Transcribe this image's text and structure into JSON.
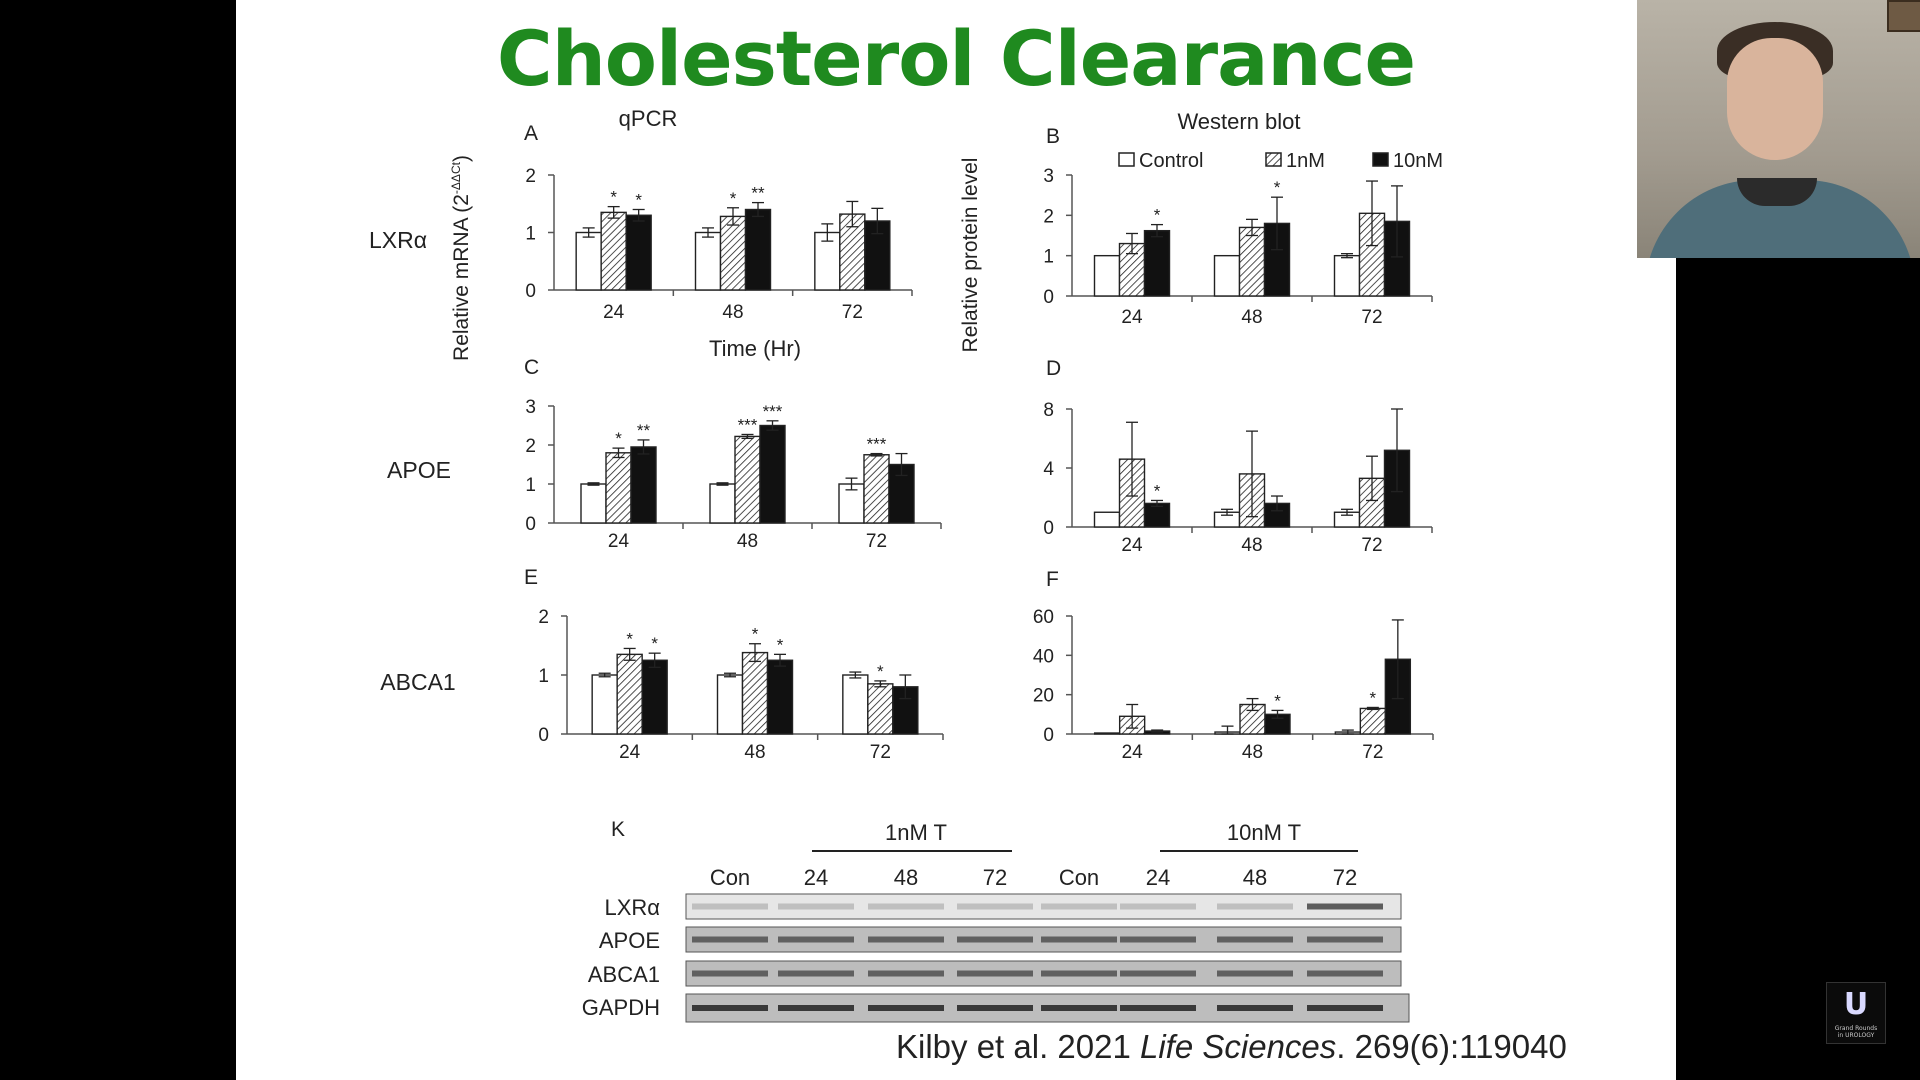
{
  "slide": {
    "title": "Cholesterol Clearance",
    "citation_authors": "Kilby et al. 2021 ",
    "citation_journal": "Life Sciences",
    "citation_ref": ". 269(6):119040"
  },
  "figure_labels": {
    "qpcr_header": "qPCR",
    "western_header": "Western blot",
    "rna_ylabel": "Relative mRNA (2",
    "rna_ylabel_sup": "-ΔΔCt",
    "rna_ylabel_end": ")",
    "protein_ylabel": "Relative protein level",
    "time_label": "Time (Hr)",
    "row_labels": [
      "LXRα",
      "APOE",
      "ABCA1"
    ],
    "legend": [
      {
        "label": "Control",
        "fill": "white"
      },
      {
        "label": "1nM",
        "fill": "hatch"
      },
      {
        "label": "10nM",
        "fill": "black"
      }
    ]
  },
  "chart_data": [
    {
      "panel": "A",
      "type": "bar",
      "categories": [
        "24",
        "48",
        "72"
      ],
      "yticks": [
        0,
        1,
        2
      ],
      "ylim": [
        0,
        2
      ],
      "series": [
        {
          "name": "Control",
          "values": [
            1.0,
            1.0,
            1.0
          ],
          "err": [
            0.08,
            0.08,
            0.15
          ],
          "stars": [
            "",
            "",
            ""
          ]
        },
        {
          "name": "1nM",
          "values": [
            1.35,
            1.28,
            1.32
          ],
          "err": [
            0.1,
            0.15,
            0.22
          ],
          "stars": [
            "*",
            "*",
            ""
          ]
        },
        {
          "name": "10nM",
          "values": [
            1.3,
            1.4,
            1.2
          ],
          "err": [
            0.1,
            0.12,
            0.22
          ],
          "stars": [
            "*",
            "**",
            ""
          ]
        }
      ]
    },
    {
      "panel": "B",
      "type": "bar",
      "categories": [
        "24",
        "48",
        "72"
      ],
      "yticks": [
        0,
        1,
        2,
        3
      ],
      "ylim": [
        0,
        3
      ],
      "series": [
        {
          "name": "Control",
          "values": [
            1.0,
            1.0,
            1.0
          ],
          "err": [
            0,
            0,
            0.05
          ],
          "stars": [
            "",
            "",
            ""
          ]
        },
        {
          "name": "1nM",
          "values": [
            1.3,
            1.7,
            2.05
          ],
          "err": [
            0.25,
            0.2,
            0.8
          ],
          "stars": [
            "",
            "",
            ""
          ]
        },
        {
          "name": "10nM",
          "values": [
            1.62,
            1.8,
            1.85
          ],
          "err": [
            0.15,
            0.65,
            0.88
          ],
          "stars": [
            "*",
            "*",
            ""
          ]
        }
      ]
    },
    {
      "panel": "C",
      "type": "bar",
      "categories": [
        "24",
        "48",
        "72"
      ],
      "yticks": [
        0,
        1,
        2,
        3
      ],
      "ylim": [
        0,
        3
      ],
      "series": [
        {
          "name": "Control",
          "values": [
            1.0,
            1.0,
            1.0
          ],
          "err": [
            0.03,
            0.03,
            0.15
          ],
          "stars": [
            "",
            "",
            ""
          ]
        },
        {
          "name": "1nM",
          "values": [
            1.8,
            2.22,
            1.75
          ],
          "err": [
            0.12,
            0.05,
            0.03
          ],
          "stars": [
            "*",
            "***",
            "***"
          ]
        },
        {
          "name": "10nM",
          "values": [
            1.95,
            2.5,
            1.5
          ],
          "err": [
            0.18,
            0.12,
            0.28
          ],
          "stars": [
            "**",
            "***",
            ""
          ]
        }
      ]
    },
    {
      "panel": "D",
      "type": "bar",
      "categories": [
        "24",
        "48",
        "72"
      ],
      "yticks": [
        0,
        4,
        8
      ],
      "ylim": [
        0,
        8
      ],
      "series": [
        {
          "name": "Control",
          "values": [
            1.0,
            1.0,
            1.0
          ],
          "err": [
            0,
            0.2,
            0.2
          ],
          "stars": [
            "",
            "",
            ""
          ]
        },
        {
          "name": "1nM",
          "values": [
            4.6,
            3.6,
            3.3
          ],
          "err": [
            2.5,
            2.9,
            1.5
          ],
          "stars": [
            "",
            "",
            ""
          ]
        },
        {
          "name": "10nM",
          "values": [
            1.6,
            1.6,
            5.2
          ],
          "err": [
            0.2,
            0.5,
            2.8
          ],
          "stars": [
            "*",
            "",
            ""
          ]
        }
      ]
    },
    {
      "panel": "E",
      "type": "bar",
      "categories": [
        "24",
        "48",
        "72"
      ],
      "yticks": [
        0,
        1,
        2
      ],
      "ylim": [
        0,
        2
      ],
      "series": [
        {
          "name": "Control",
          "values": [
            1.0,
            1.0,
            1.0
          ],
          "err": [
            0.03,
            0.03,
            0.05
          ],
          "stars": [
            "",
            "",
            ""
          ]
        },
        {
          "name": "1nM",
          "values": [
            1.35,
            1.38,
            0.85
          ],
          "err": [
            0.1,
            0.15,
            0.05
          ],
          "stars": [
            "*",
            "*",
            "*"
          ]
        },
        {
          "name": "10nM",
          "values": [
            1.25,
            1.25,
            0.8
          ],
          "err": [
            0.12,
            0.1,
            0.2
          ],
          "stars": [
            "*",
            "*",
            ""
          ]
        }
      ]
    },
    {
      "panel": "F",
      "type": "bar",
      "categories": [
        "24",
        "48",
        "72"
      ],
      "yticks": [
        0,
        20,
        40,
        60
      ],
      "ylim": [
        0,
        60
      ],
      "series": [
        {
          "name": "Control",
          "values": [
            0.5,
            1.0,
            1.0
          ],
          "err": [
            0,
            3,
            1
          ],
          "stars": [
            "",
            "",
            ""
          ]
        },
        {
          "name": "1nM",
          "values": [
            9,
            15,
            13
          ],
          "err": [
            6,
            3,
            0.5
          ],
          "stars": [
            "",
            "",
            "*"
          ]
        },
        {
          "name": "10nM",
          "values": [
            1.5,
            10,
            38
          ],
          "err": [
            0.5,
            2,
            20
          ],
          "stars": [
            "",
            "*",
            ""
          ]
        }
      ]
    }
  ],
  "blot": {
    "panel": "K",
    "group_1nM": "1nM T",
    "group_10nM": "10nM T",
    "lanes": [
      "Con",
      "24",
      "48",
      "72",
      "Con",
      "24",
      "48",
      "72"
    ],
    "rows": [
      "LXRα",
      "APOE",
      "ABCA1",
      "GAPDH"
    ]
  },
  "webcam": {},
  "logo": {
    "letter": "U",
    "line1": "Grand Rounds",
    "line2": "in UROLOGY"
  }
}
